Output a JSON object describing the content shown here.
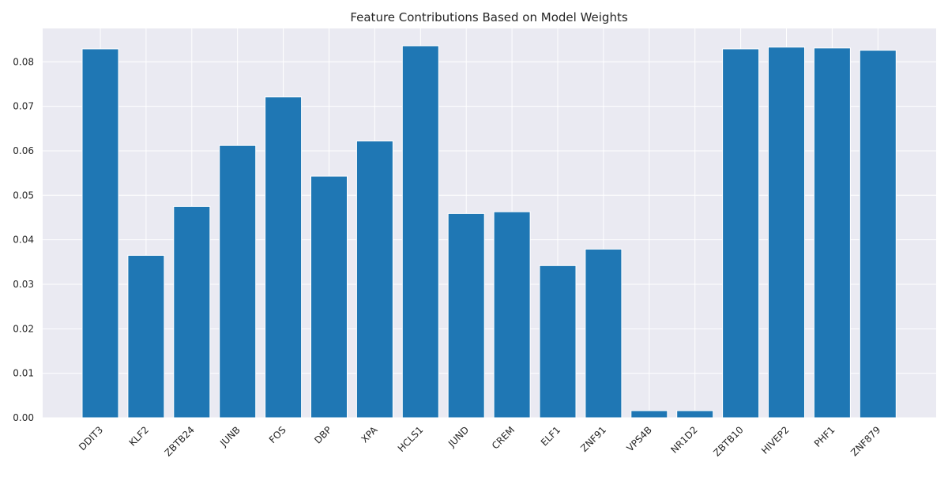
{
  "chart_data": {
    "type": "bar",
    "title": "Feature Contributions Based on Model Weights",
    "xlabel": "",
    "ylabel": "",
    "categories": [
      "DDIT3",
      "KLF2",
      "ZBTB24",
      "JUNB",
      "FOS",
      "DBP",
      "XPA",
      "HCLS1",
      "JUND",
      "CREM",
      "ELF1",
      "ZNF91",
      "VPS4B",
      "NR1D2",
      "ZBTB10",
      "HIVEP2",
      "PHF1",
      "ZNF879"
    ],
    "values": [
      0.0829,
      0.0365,
      0.0475,
      0.0612,
      0.0721,
      0.0543,
      0.0622,
      0.0836,
      0.0459,
      0.0463,
      0.0342,
      0.0379,
      0.0016,
      0.0016,
      0.0829,
      0.0833,
      0.0831,
      0.0826
    ],
    "ylim": [
      0,
      0.0875
    ],
    "yticks": [
      "0.00",
      "0.01",
      "0.02",
      "0.03",
      "0.04",
      "0.05",
      "0.06",
      "0.07",
      "0.08"
    ],
    "grid": true,
    "colors": {
      "bar": "#1f77b4",
      "background": "#eaeaf2",
      "grid": "#ffffff"
    }
  }
}
